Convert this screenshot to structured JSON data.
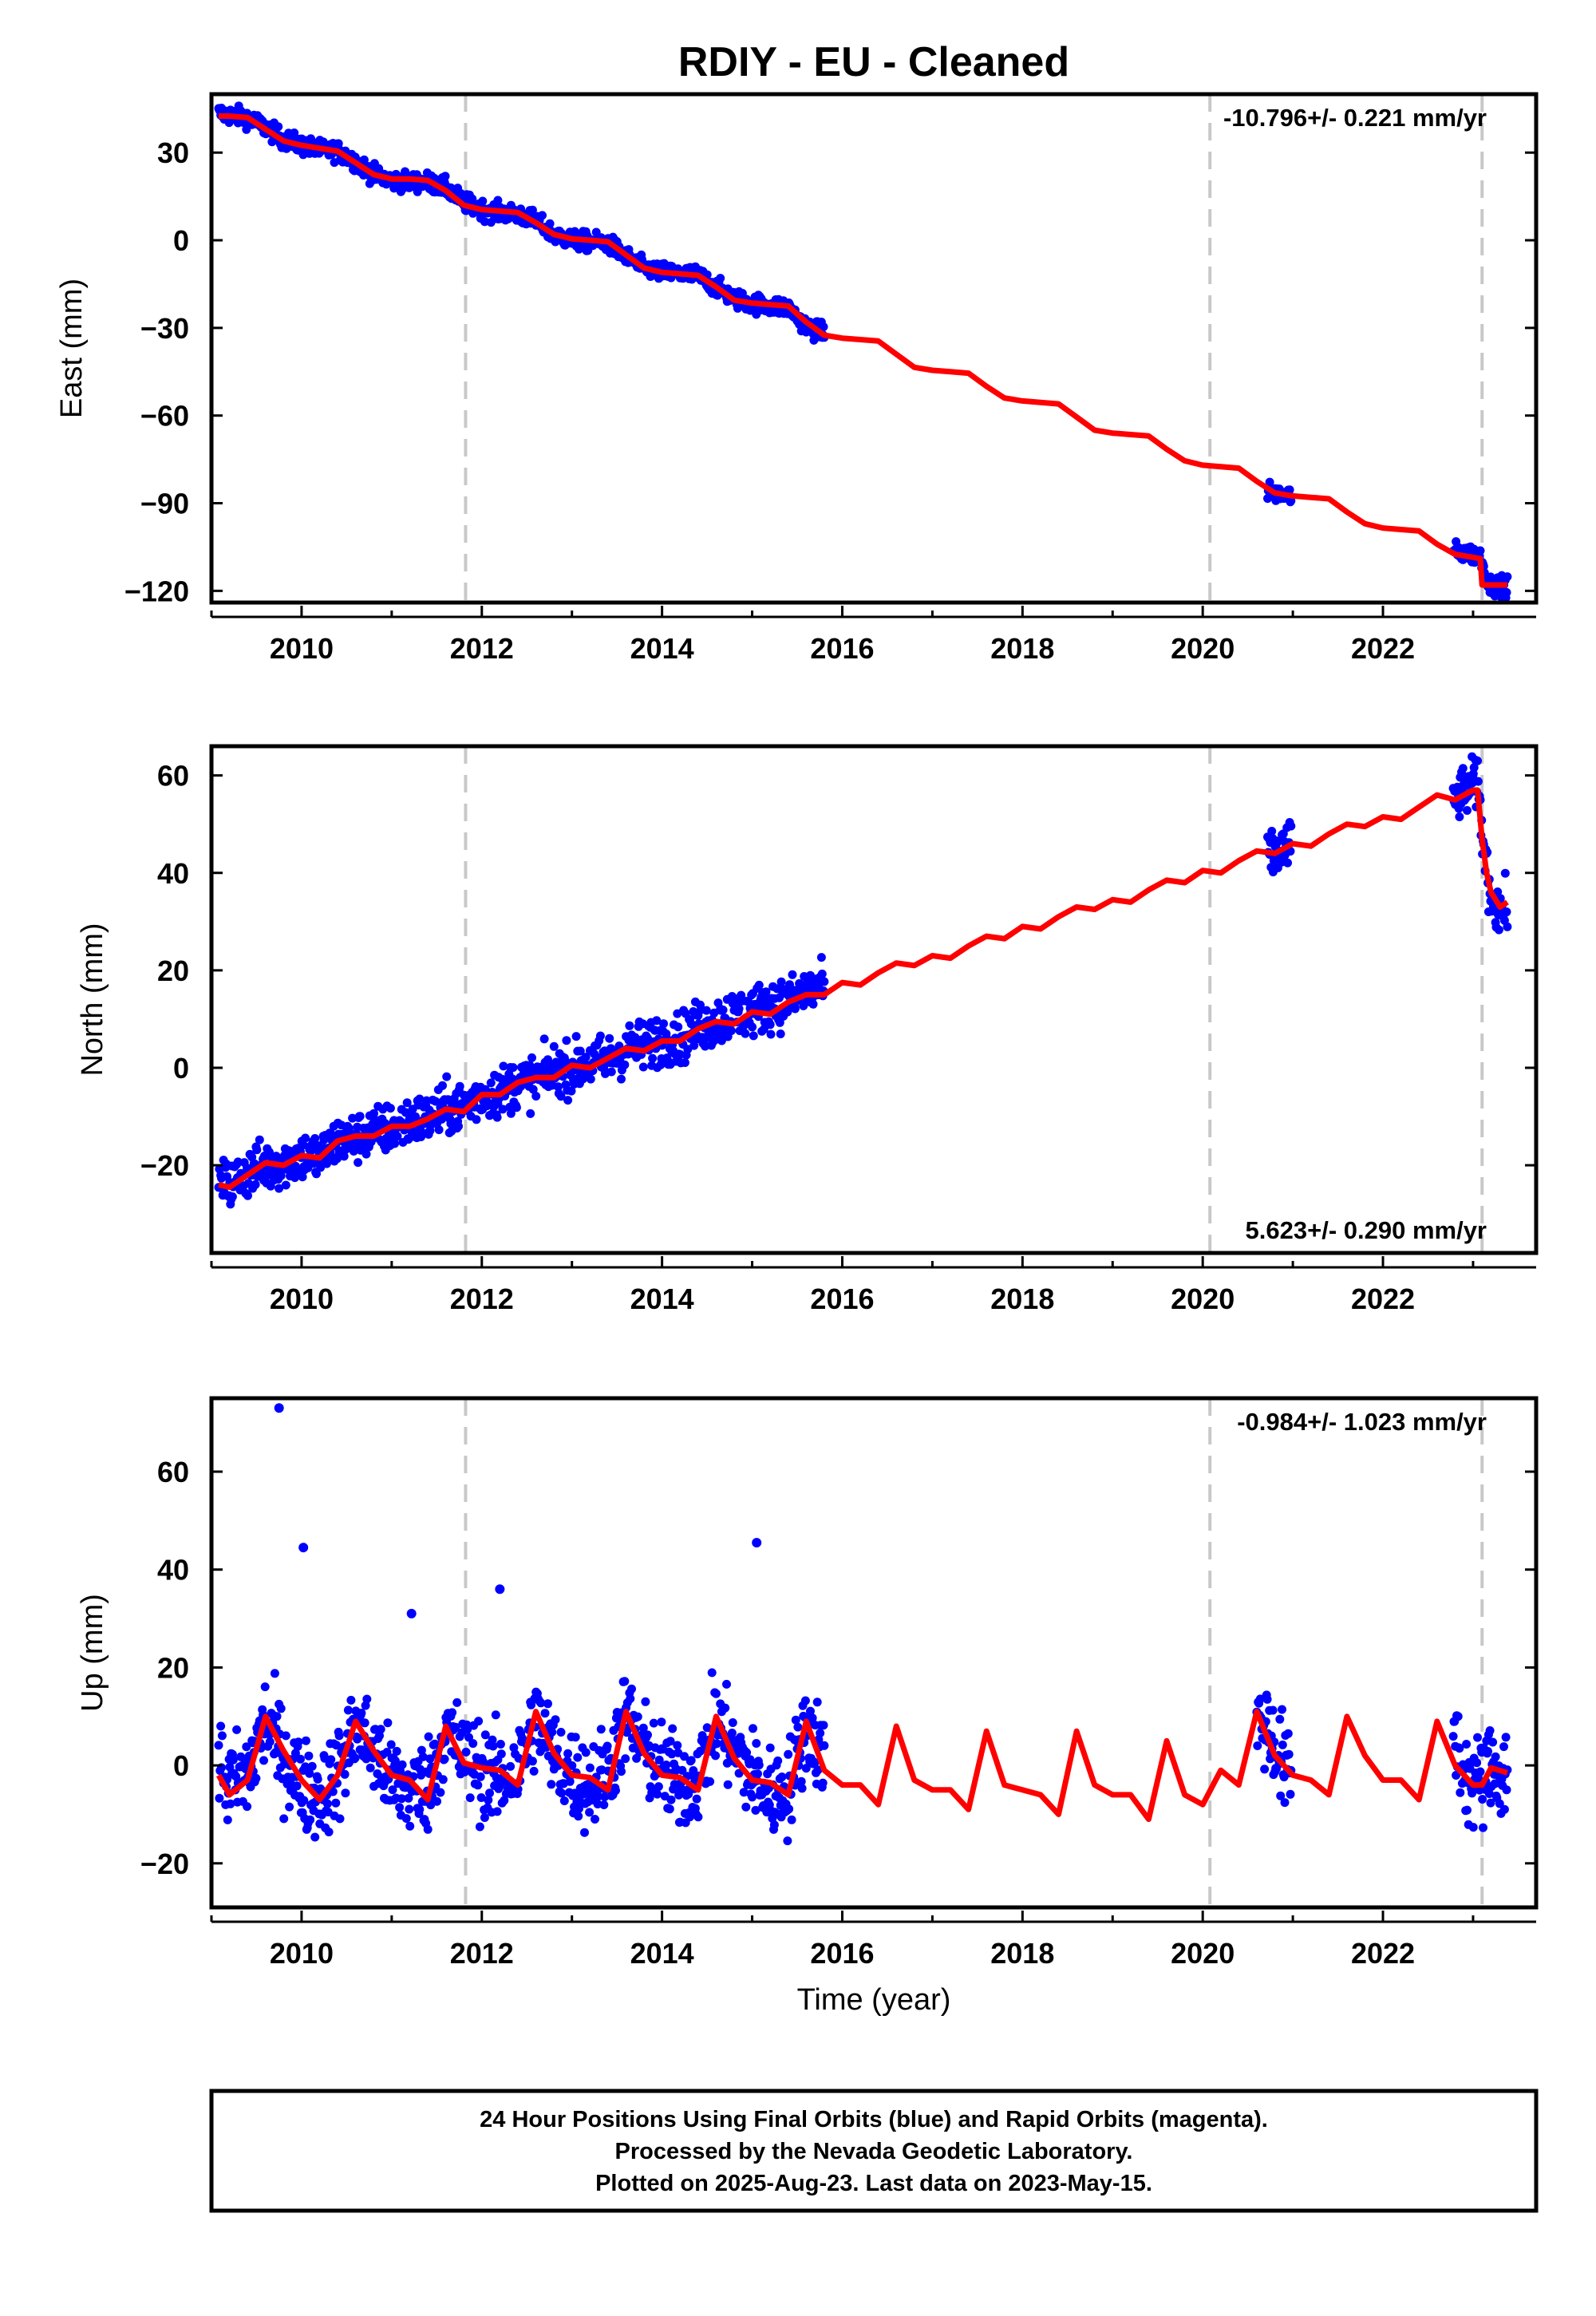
{
  "title": "RDIY  - EU - Cleaned",
  "xlabel": "Time (year)",
  "xticks": [
    2010,
    2012,
    2014,
    2016,
    2018,
    2020,
    2022
  ],
  "xlim": [
    2009.0,
    2023.7
  ],
  "steps": [
    2011.82,
    2020.08,
    2023.1
  ],
  "colors": {
    "data": "#0000ff",
    "model": "#ff0000",
    "step": "#c8c8c8",
    "axis": "#000000"
  },
  "chart_data": [
    {
      "type": "scatter",
      "name": "east",
      "ylabel": "East (mm)",
      "ylim": [
        -124,
        50
      ],
      "yticks": [
        30,
        0,
        -30,
        -60,
        -90,
        -120
      ],
      "rate": "-10.796+/- 0.221 mm/yr",
      "rate_position": "top-right",
      "series": [
        {
          "name": "Daily positions",
          "color": "#0000ff",
          "segments": [
            {
              "x": [
                2009.08,
                2009.2,
                2009.4,
                2009.6,
                2009.8,
                2010.0,
                2010.2,
                2010.4,
                2010.6,
                2010.8,
                2011.0,
                2011.2,
                2011.4,
                2011.6,
                2011.8,
                2012.0,
                2012.2,
                2012.4,
                2012.6,
                2012.8,
                2013.0,
                2013.2,
                2013.4,
                2013.6,
                2013.8,
                2014.0,
                2014.2,
                2014.4,
                2014.6,
                2014.8,
                2015.0,
                2015.2,
                2015.4,
                2015.6,
                2015.8
              ],
              "y": [
                43.5,
                42.8,
                42.0,
                38.5,
                34.5,
                32.5,
                31.0,
                30.5,
                27.0,
                22.5,
                20.5,
                20.0,
                20.0,
                18.0,
                13.0,
                10.5,
                9.5,
                9.0,
                6.5,
                2.0,
                0.0,
                -0.5,
                -1.0,
                -5.5,
                -9.5,
                -11.0,
                -11.5,
                -12.0,
                -16.0,
                -20.0,
                -21.5,
                -22.5,
                -23.0,
                -29.5,
                -32.0
              ]
            },
            {
              "x": [
                2020.72,
                2020.85,
                2020.98
              ],
              "y": [
                -85.5,
                -87.0,
                -87.5
              ]
            },
            {
              "x": [
                2022.78,
                2022.9,
                2023.0,
                2023.08,
                2023.18,
                2023.3,
                2023.38
              ],
              "y": [
                -106.5,
                -107.0,
                -107.5,
                -108.0,
                -118.0,
                -118.0,
                -118.5
              ]
            }
          ]
        },
        {
          "name": "Model",
          "color": "#ff0000",
          "x": [
            2009.08,
            2009.2,
            2009.4,
            2009.6,
            2009.8,
            2010.0,
            2010.2,
            2010.4,
            2010.6,
            2010.8,
            2011.0,
            2011.2,
            2011.4,
            2011.6,
            2011.8,
            2012.0,
            2012.2,
            2012.4,
            2012.6,
            2012.8,
            2013.0,
            2013.2,
            2013.4,
            2013.6,
            2013.8,
            2014.0,
            2014.2,
            2014.4,
            2014.6,
            2014.8,
            2015.0,
            2015.2,
            2015.4,
            2015.6,
            2015.8,
            2016.0,
            2016.2,
            2016.4,
            2016.6,
            2016.8,
            2017.0,
            2017.2,
            2017.4,
            2017.6,
            2017.8,
            2018.0,
            2018.2,
            2018.4,
            2018.6,
            2018.8,
            2019.0,
            2019.2,
            2019.4,
            2019.6,
            2019.8,
            2020.0,
            2020.2,
            2020.4,
            2020.6,
            2020.8,
            2021.0,
            2021.2,
            2021.4,
            2021.6,
            2021.8,
            2022.0,
            2022.2,
            2022.4,
            2022.6,
            2022.8,
            2023.0,
            2023.08,
            2023.1,
            2023.2,
            2023.38
          ],
          "y": [
            42.5,
            42.5,
            42.0,
            38.0,
            34.0,
            32.5,
            31.5,
            30.5,
            26.5,
            22.5,
            21.0,
            21.0,
            20.5,
            17.0,
            12.0,
            10.5,
            10.0,
            9.5,
            6.0,
            2.0,
            0.5,
            0.0,
            -0.5,
            -5.0,
            -9.5,
            -11.0,
            -11.5,
            -12.0,
            -16.0,
            -20.5,
            -21.5,
            -22.0,
            -22.5,
            -28.0,
            -32.5,
            -33.5,
            -34.0,
            -34.5,
            -39.0,
            -43.5,
            -44.5,
            -45.0,
            -45.5,
            -50.0,
            -54.0,
            -55.0,
            -55.5,
            -56.0,
            -60.5,
            -65.0,
            -66.0,
            -66.5,
            -67.0,
            -71.5,
            -75.5,
            -77.0,
            -77.5,
            -78.0,
            -82.5,
            -86.5,
            -87.5,
            -88.0,
            -88.5,
            -93.0,
            -97.0,
            -98.5,
            -99.0,
            -99.5,
            -104.0,
            -107.5,
            -108.5,
            -109.0,
            -118.0,
            -118.0,
            -118.0
          ]
        }
      ]
    },
    {
      "type": "scatter",
      "name": "north",
      "ylabel": "North (mm)",
      "ylim": [
        -38,
        66
      ],
      "yticks": [
        60,
        40,
        20,
        0,
        -20
      ],
      "rate": "5.623+/- 0.290 mm/yr",
      "rate_position": "bottom-right",
      "series": [
        {
          "name": "Daily positions",
          "color": "#0000ff",
          "segments": [
            {
              "x": [
                2009.08,
                2009.2,
                2009.4,
                2009.6,
                2009.8,
                2010.0,
                2010.2,
                2010.4,
                2010.6,
                2010.8,
                2011.0,
                2011.2,
                2011.4,
                2011.6,
                2011.8,
                2012.0,
                2012.2,
                2012.4,
                2012.6,
                2012.8,
                2013.0,
                2013.2,
                2013.4,
                2013.6,
                2013.8,
                2014.0,
                2014.2,
                2014.4,
                2014.6,
                2014.8,
                2015.0,
                2015.2,
                2015.4,
                2015.6,
                2015.8
              ],
              "y": [
                -24.0,
                -24.0,
                -21.5,
                -20.0,
                -19.5,
                -18.0,
                -18.5,
                -15.0,
                -14.5,
                -13.0,
                -12.5,
                -11.0,
                -10.5,
                -8.5,
                -8.0,
                -5.5,
                -5.0,
                -3.0,
                -2.5,
                -0.5,
                0.0,
                1.0,
                1.5,
                4.0,
                4.5,
                6.0,
                6.0,
                8.5,
                9.5,
                11.0,
                11.5,
                13.0,
                13.5,
                15.5,
                16.5
              ]
            },
            {
              "x": [
                2020.72,
                2020.85,
                2020.98
              ],
              "y": [
                43.5,
                44.5,
                45.5
              ]
            },
            {
              "x": [
                2022.78,
                2022.9,
                2023.0,
                2023.05,
                2023.12,
                2023.2,
                2023.3,
                2023.38
              ],
              "y": [
                55.5,
                56.5,
                58.5,
                58.0,
                45.0,
                35.0,
                32.0,
                33.0
              ]
            }
          ]
        },
        {
          "name": "Model",
          "color": "#ff0000",
          "x": [
            2009.08,
            2009.2,
            2009.4,
            2009.6,
            2009.8,
            2010.0,
            2010.2,
            2010.4,
            2010.6,
            2010.8,
            2011.0,
            2011.2,
            2011.4,
            2011.6,
            2011.8,
            2012.0,
            2012.2,
            2012.4,
            2012.6,
            2012.8,
            2013.0,
            2013.2,
            2013.4,
            2013.6,
            2013.8,
            2014.0,
            2014.2,
            2014.4,
            2014.6,
            2014.8,
            2015.0,
            2015.2,
            2015.4,
            2015.6,
            2015.8,
            2016.0,
            2016.2,
            2016.4,
            2016.6,
            2016.8,
            2017.0,
            2017.2,
            2017.4,
            2017.6,
            2017.8,
            2018.0,
            2018.2,
            2018.4,
            2018.6,
            2018.8,
            2019.0,
            2019.2,
            2019.4,
            2019.6,
            2019.8,
            2020.0,
            2020.2,
            2020.4,
            2020.6,
            2020.8,
            2021.0,
            2021.2,
            2021.4,
            2021.6,
            2021.8,
            2022.0,
            2022.2,
            2022.4,
            2022.6,
            2022.8,
            2023.0,
            2023.05,
            2023.1,
            2023.15,
            2023.2,
            2023.3,
            2023.38
          ],
          "y": [
            -24.0,
            -24.5,
            -22.0,
            -19.5,
            -20.0,
            -18.0,
            -18.5,
            -15.0,
            -14.0,
            -14.0,
            -12.0,
            -12.0,
            -10.5,
            -8.5,
            -9.0,
            -5.5,
            -5.5,
            -3.0,
            -2.0,
            -2.0,
            0.5,
            0.0,
            2.0,
            4.0,
            3.5,
            5.5,
            5.5,
            8.0,
            9.5,
            9.0,
            11.5,
            11.0,
            13.5,
            15.0,
            15.0,
            17.5,
            17.0,
            19.5,
            21.5,
            21.0,
            23.0,
            22.5,
            25.0,
            27.0,
            26.5,
            29.0,
            28.5,
            31.0,
            33.0,
            32.5,
            34.5,
            34.0,
            36.5,
            38.5,
            38.0,
            40.5,
            40.0,
            42.5,
            44.5,
            44.0,
            46.0,
            45.5,
            48.0,
            50.0,
            49.5,
            51.5,
            51.0,
            53.5,
            56.0,
            55.0,
            57.0,
            57.0,
            47.0,
            40.0,
            36.0,
            33.0,
            34.0
          ]
        }
      ]
    },
    {
      "type": "scatter",
      "name": "up",
      "ylabel": "Up (mm)",
      "ylim": [
        -29,
        75
      ],
      "yticks": [
        60,
        40,
        20,
        0,
        -20
      ],
      "rate": "-0.984+/- 1.023 mm/yr",
      "rate_position": "top-right",
      "series": [
        {
          "name": "Daily positions",
          "color": "#0000ff",
          "segments": [
            {
              "x": [
                2009.08,
                2009.2,
                2009.4,
                2009.6,
                2009.8,
                2010.0,
                2010.2,
                2010.4,
                2010.6,
                2010.8,
                2011.0,
                2011.2,
                2011.4,
                2011.6,
                2011.8,
                2012.0,
                2012.2,
                2012.4,
                2012.6,
                2012.8,
                2013.0,
                2013.2,
                2013.4,
                2013.6,
                2013.8,
                2014.0,
                2014.2,
                2014.4,
                2014.6,
                2014.8,
                2015.0,
                2015.2,
                2015.4,
                2015.6,
                2015.8
              ],
              "y": [
                0.0,
                -4.0,
                -2.0,
                9.0,
                2.0,
                -4.0,
                -6.0,
                -2.0,
                8.0,
                3.0,
                -3.0,
                -5.0,
                -4.0,
                7.0,
                2.0,
                -1.0,
                -3.0,
                -1.0,
                10.0,
                2.0,
                -2.0,
                -4.0,
                -1.0,
                10.0,
                3.0,
                -1.0,
                -4.0,
                -2.0,
                9.0,
                3.0,
                -2.0,
                -6.0,
                -5.0,
                8.0,
                2.0
              ]
            },
            {
              "x": [
                2020.6,
                2020.72,
                2020.85,
                2020.98
              ],
              "y": [
                9.0,
                8.0,
                2.0,
                -3.0
              ]
            },
            {
              "x": [
                2022.78,
                2022.9,
                2023.0,
                2023.1,
                2023.2,
                2023.3,
                2023.38
              ],
              "y": [
                8.0,
                -2.0,
                -4.0,
                -3.0,
                0.0,
                -2.0,
                -1.0
              ]
            }
          ]
        },
        {
          "name": "Outliers",
          "color": "#0000ff",
          "x": [
            2009.75,
            2010.02,
            2011.22,
            2012.2,
            2015.05
          ],
          "y": [
            73.0,
            44.5,
            31.0,
            36.0,
            45.5
          ]
        },
        {
          "name": "Model",
          "color": "#ff0000",
          "x": [
            2009.08,
            2009.2,
            2009.4,
            2009.6,
            2009.8,
            2010.0,
            2010.2,
            2010.4,
            2010.6,
            2010.8,
            2011.0,
            2011.2,
            2011.4,
            2011.6,
            2011.8,
            2012.0,
            2012.2,
            2012.4,
            2012.6,
            2012.8,
            2013.0,
            2013.2,
            2013.4,
            2013.6,
            2013.8,
            2014.0,
            2014.2,
            2014.4,
            2014.6,
            2014.8,
            2015.0,
            2015.2,
            2015.4,
            2015.6,
            2015.8,
            2016.0,
            2016.2,
            2016.4,
            2016.6,
            2016.8,
            2017.0,
            2017.2,
            2017.4,
            2017.6,
            2017.8,
            2018.0,
            2018.2,
            2018.4,
            2018.6,
            2018.8,
            2019.0,
            2019.2,
            2019.4,
            2019.6,
            2019.8,
            2020.0,
            2020.2,
            2020.4,
            2020.6,
            2020.8,
            2021.0,
            2021.2,
            2021.4,
            2021.6,
            2021.8,
            2022.0,
            2022.2,
            2022.4,
            2022.6,
            2022.8,
            2023.0,
            2023.1,
            2023.2,
            2023.38
          ],
          "y": [
            -2.0,
            -6.0,
            -3.0,
            10.0,
            3.0,
            -3.0,
            -7.0,
            -2.0,
            9.0,
            3.0,
            -2.0,
            -3.0,
            -7.0,
            8.0,
            0.5,
            -0.5,
            -1.0,
            -4.0,
            11.0,
            2.5,
            -2.0,
            -2.5,
            -5.0,
            11.0,
            2.5,
            -2.0,
            -2.5,
            -5.0,
            10.0,
            1.5,
            -3.0,
            -3.5,
            -6.0,
            9.0,
            -1.0,
            -4.0,
            -4.0,
            -8.0,
            8.0,
            -3.0,
            -5.0,
            -5.0,
            -9.0,
            7.0,
            -4.0,
            -5.0,
            -6.0,
            -10.0,
            7.0,
            -4.0,
            -6.0,
            -6.0,
            -11.0,
            5.0,
            -6.0,
            -8.0,
            -1.0,
            -4.0,
            11.0,
            2.0,
            -2.0,
            -3.0,
            -6.0,
            10.0,
            2.0,
            -3.0,
            -3.0,
            -7.0,
            9.0,
            0.0,
            -4.0,
            -4.0,
            -0.5,
            -1.5
          ]
        }
      ]
    }
  ],
  "footer": {
    "lines": [
      "24 Hour Positions Using Final Orbits (blue) and Rapid Orbits (magenta).",
      "Processed by the Nevada Geodetic Laboratory.",
      "Plotted on 2025-Aug-23. Last data on 2023-May-15."
    ]
  }
}
